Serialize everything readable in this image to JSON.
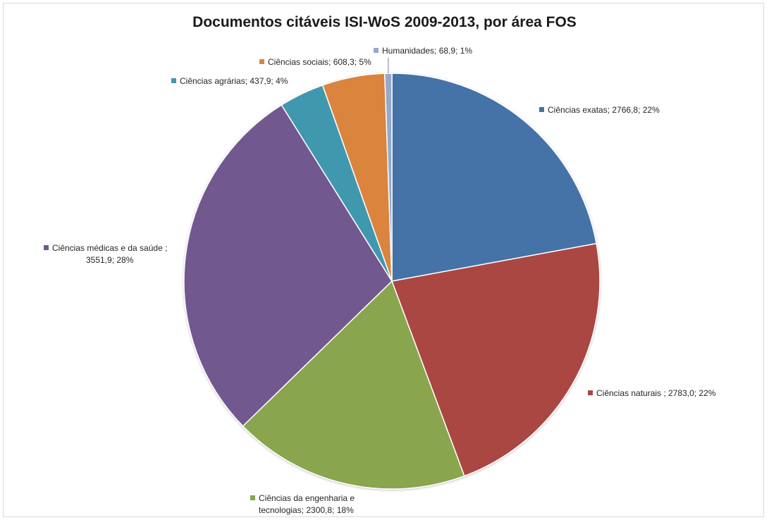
{
  "chart_data": {
    "type": "pie",
    "title": "Documentos citáveis ISI-WoS 2009-2013, por área FOS",
    "start_angle_deg": 0,
    "direction": "clockwise",
    "slices": [
      {
        "name": "Ciências exatas",
        "value": 2766.8,
        "value_label": "2766,8",
        "percent_label": "22%",
        "color": "#4572a7",
        "label_lines": [
          "Ciências exatas; 2766,8; 22%"
        ]
      },
      {
        "name": "Ciências naturais",
        "value": 2783.0,
        "value_label": "2783,0",
        "percent_label": "22%",
        "color": "#aa4643",
        "label_lines": [
          "Ciências naturais ; 2783,0; 22%"
        ]
      },
      {
        "name": "Ciências da engenharia e tecnologias",
        "value": 2300.8,
        "value_label": "2300,8",
        "percent_label": "18%",
        "color": "#89a54e",
        "label_lines": [
          "Ciências da engenharia e",
          "tecnologias; 2300,8; 18%"
        ]
      },
      {
        "name": "Ciências médicas e da saúde",
        "value": 3551.9,
        "value_label": "3551,9",
        "percent_label": "28%",
        "color": "#71588f",
        "label_lines": [
          "Ciências médicas e da saúde ;",
          "3551,9; 28%"
        ]
      },
      {
        "name": "Ciências agrárias",
        "value": 437.9,
        "value_label": "437,9",
        "percent_label": "4%",
        "color": "#4198af",
        "label_lines": [
          "Ciências agrárias; 437,9; 4%"
        ]
      },
      {
        "name": "Ciências sociais",
        "value": 608.3,
        "value_label": "608,3",
        "percent_label": "5%",
        "color": "#db843d",
        "label_lines": [
          "Ciências sociais; 608,3; 5%"
        ]
      },
      {
        "name": "Humanidades",
        "value": 68.9,
        "value_label": "68,9",
        "percent_label": "1%",
        "color": "#93a9cf",
        "label_lines": [
          "Humanidades; 68,9; 1%"
        ]
      }
    ]
  }
}
